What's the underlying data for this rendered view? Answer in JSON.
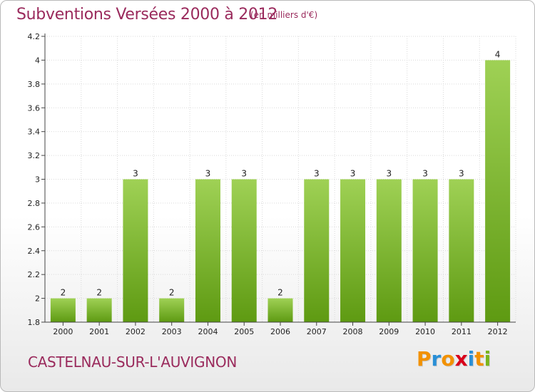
{
  "title": "Subventions Versées 2000 à 2012",
  "unit_note": "(en milliers d'€)",
  "commune": "CASTELNAU-SUR-L'AUVIGNON",
  "brand": {
    "letters": [
      "P",
      "r",
      "o",
      "x",
      "i",
      "t",
      "i"
    ],
    "colors": [
      "#f29100",
      "#2a8fd6",
      "#f29100",
      "#d9001b",
      "#2a8fd6",
      "#f29100",
      "#7ab51d"
    ]
  },
  "colors": {
    "title": "#9a2a5c",
    "bar_light": "#9fd155",
    "bar_dark": "#5e9a12",
    "grid": "#d9d9d9",
    "axis": "#444444"
  },
  "chart_data": {
    "type": "bar",
    "categories": [
      "2000",
      "2001",
      "2002",
      "2003",
      "2004",
      "2005",
      "2006",
      "2007",
      "2008",
      "2009",
      "2010",
      "2011",
      "2012"
    ],
    "values": [
      2,
      2,
      3,
      2,
      3,
      3,
      2,
      3,
      3,
      3,
      3,
      3,
      4
    ],
    "value_labels": [
      "2",
      "2",
      "3",
      "2",
      "3",
      "3",
      "2",
      "3",
      "3",
      "3",
      "3",
      "3",
      "4"
    ],
    "ylim": [
      1.8,
      4.2
    ],
    "yticks": [
      1.8,
      2,
      2.2,
      2.4,
      2.6,
      2.8,
      3,
      3.2,
      3.4,
      3.6,
      3.8,
      4,
      4.2
    ],
    "ytick_labels": [
      "1.8",
      "2",
      "2.2",
      "2.4",
      "2.6",
      "2.8",
      "3",
      "3.2",
      "3.4",
      "3.6",
      "3.8",
      "4",
      "4.2"
    ],
    "grid": true,
    "legend": "none",
    "title": "Subventions Versées 2000 à 2012",
    "xlabel": "",
    "ylabel": ""
  }
}
